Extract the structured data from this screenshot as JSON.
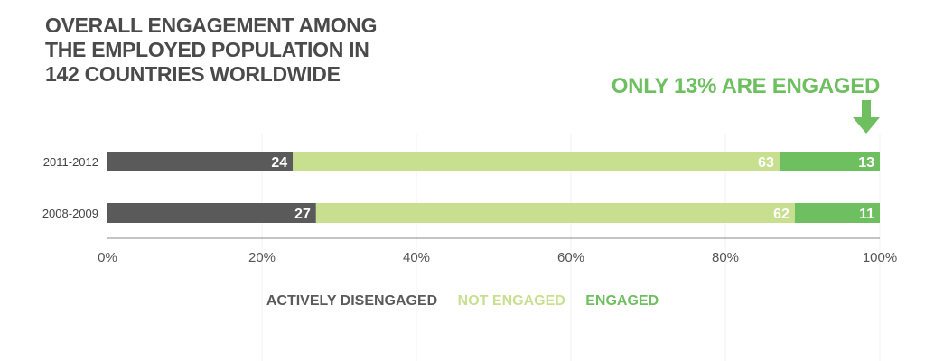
{
  "chart_data": {
    "type": "bar",
    "stacked": true,
    "orientation": "horizontal",
    "title": [
      "OVERALL ENGAGEMENT AMONG",
      "THE EMPLOYED POPULATION IN",
      "142 COUNTRIES WORLDWIDE"
    ],
    "categories": [
      "2011-2012",
      "2008-2009"
    ],
    "series": [
      {
        "name": "ACTIVELY DISENGAGED",
        "values": [
          24,
          27
        ],
        "color": "#5a5a5a",
        "label_color": "#ffffff"
      },
      {
        "name": "NOT ENGAGED",
        "values": [
          63,
          62
        ],
        "color": "#c7df8f",
        "label_color": "#ffffff"
      },
      {
        "name": "ENGAGED",
        "values": [
          13,
          11
        ],
        "color": "#6dbf5f",
        "label_color": "#ffffff"
      }
    ],
    "xlim": [
      0,
      100
    ],
    "x_ticks": [
      "0%",
      "20%",
      "40%",
      "60%",
      "80%",
      "100%"
    ],
    "grid": true,
    "legend_position": "bottom",
    "annotation": "ONLY 13% ARE ENGAGED",
    "annotation_icon": "down-arrow-icon"
  }
}
